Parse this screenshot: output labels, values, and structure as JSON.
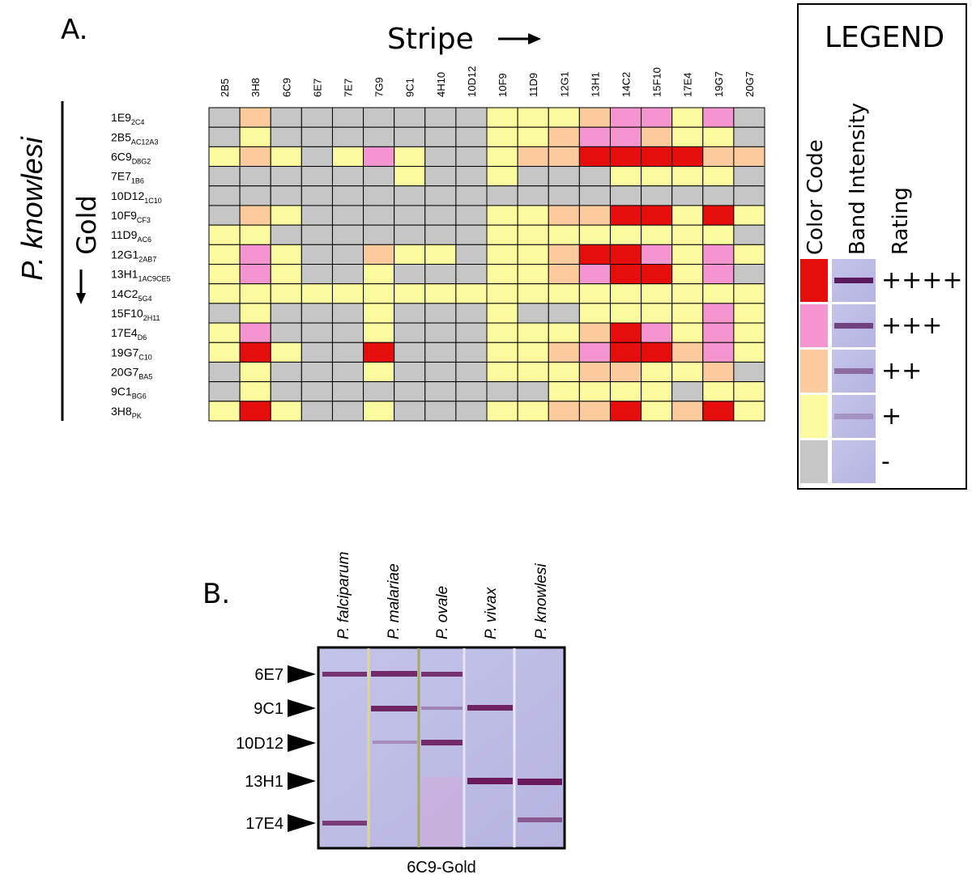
{
  "chart_data": {
    "type": "heatmap",
    "panel_a": "A.",
    "panel_b": "B.",
    "x_label": "Stripe",
    "y_label": "P. knowlesi",
    "y_sublabel": "Gold",
    "columns": [
      "2B5",
      "3H8",
      "6C9",
      "6E7",
      "7E7",
      "7G9",
      "9C1",
      "4H10",
      "10D12",
      "10F9",
      "11D9",
      "12G1",
      "13H1",
      "14C2",
      "15F10",
      "17E4",
      "19G7",
      "20G7"
    ],
    "rows": [
      {
        "name": "1E9",
        "sub": "2C4"
      },
      {
        "name": "2B5",
        "sub": "AC12A3"
      },
      {
        "name": "6C9",
        "sub": "D8G2"
      },
      {
        "name": "7E7",
        "sub": "1B6"
      },
      {
        "name": "10D12",
        "sub": "1C10"
      },
      {
        "name": "10F9",
        "sub": "CF3"
      },
      {
        "name": "11D9",
        "sub": "AC6"
      },
      {
        "name": "12G1",
        "sub": "2AB7"
      },
      {
        "name": "13H1",
        "sub": "1AC9CE5"
      },
      {
        "name": "14C2",
        "sub": "5G4"
      },
      {
        "name": "15F10",
        "sub": "2H11"
      },
      {
        "name": "17E4",
        "sub": "D6"
      },
      {
        "name": "19G7",
        "sub": "C10"
      },
      {
        "name": "20G7",
        "sub": "BA5"
      },
      {
        "name": "9C1",
        "sub": "BG6"
      },
      {
        "name": "3H8",
        "sub": "PK"
      }
    ],
    "values": [
      [
        0,
        2,
        0,
        0,
        0,
        0,
        0,
        0,
        0,
        1,
        1,
        1,
        2,
        3,
        3,
        1,
        3,
        0
      ],
      [
        0,
        1,
        0,
        0,
        0,
        0,
        0,
        0,
        0,
        1,
        1,
        2,
        3,
        3,
        2,
        1,
        1,
        0
      ],
      [
        1,
        2,
        1,
        0,
        1,
        3,
        1,
        0,
        0,
        1,
        2,
        2,
        4,
        4,
        4,
        4,
        2,
        2
      ],
      [
        0,
        0,
        0,
        0,
        0,
        0,
        1,
        0,
        0,
        1,
        0,
        0,
        0,
        1,
        1,
        1,
        1,
        0
      ],
      [
        0,
        0,
        0,
        0,
        0,
        0,
        0,
        0,
        0,
        0,
        0,
        0,
        0,
        0,
        0,
        0,
        0,
        0
      ],
      [
        0,
        2,
        1,
        0,
        0,
        0,
        0,
        0,
        0,
        1,
        1,
        2,
        2,
        4,
        4,
        1,
        4,
        1
      ],
      [
        1,
        1,
        0,
        0,
        0,
        0,
        0,
        0,
        0,
        1,
        1,
        1,
        1,
        1,
        1,
        1,
        1,
        0
      ],
      [
        1,
        3,
        1,
        0,
        0,
        2,
        1,
        1,
        0,
        1,
        1,
        2,
        4,
        4,
        3,
        1,
        3,
        1
      ],
      [
        1,
        3,
        1,
        0,
        0,
        1,
        0,
        0,
        0,
        1,
        1,
        2,
        3,
        4,
        4,
        1,
        3,
        0
      ],
      [
        1,
        1,
        1,
        1,
        1,
        1,
        1,
        1,
        1,
        1,
        1,
        1,
        1,
        1,
        1,
        1,
        1,
        1
      ],
      [
        0,
        1,
        0,
        0,
        0,
        1,
        0,
        0,
        0,
        1,
        0,
        0,
        1,
        1,
        1,
        1,
        3,
        1
      ],
      [
        1,
        3,
        0,
        0,
        0,
        1,
        0,
        0,
        0,
        1,
        1,
        1,
        2,
        4,
        3,
        1,
        3,
        1
      ],
      [
        1,
        4,
        1,
        0,
        0,
        4,
        0,
        0,
        0,
        1,
        1,
        2,
        3,
        4,
        4,
        2,
        3,
        1
      ],
      [
        0,
        1,
        0,
        0,
        0,
        1,
        0,
        0,
        0,
        1,
        1,
        1,
        2,
        2,
        1,
        1,
        2,
        0
      ],
      [
        0,
        1,
        0,
        0,
        0,
        0,
        0,
        0,
        0,
        0,
        0,
        1,
        1,
        1,
        1,
        0,
        1,
        1
      ],
      [
        1,
        4,
        1,
        0,
        0,
        1,
        0,
        0,
        0,
        1,
        1,
        2,
        2,
        4,
        1,
        2,
        4,
        1
      ]
    ],
    "legend": {
      "title": "LEGEND",
      "headers": [
        "Color Code",
        "Band Intensity",
        "Rating"
      ],
      "items": [
        {
          "rating": "++++",
          "color": "#e60d0d"
        },
        {
          "rating": "+++",
          "color": "#f595cf"
        },
        {
          "rating": "++",
          "color": "#fbcb9d"
        },
        {
          "rating": "+",
          "color": "#fbfa9e"
        },
        {
          "rating": "-",
          "color": "#c6c6c6"
        }
      ]
    }
  },
  "gel": {
    "lanes": [
      "P. falciparum",
      "P. malariae",
      "P. ovale",
      "P. vivax",
      "P. knowlesi"
    ],
    "markers": [
      "6E7",
      "9C1",
      "10D12",
      "13H1",
      "17E4"
    ],
    "caption": "6C9-Gold"
  }
}
